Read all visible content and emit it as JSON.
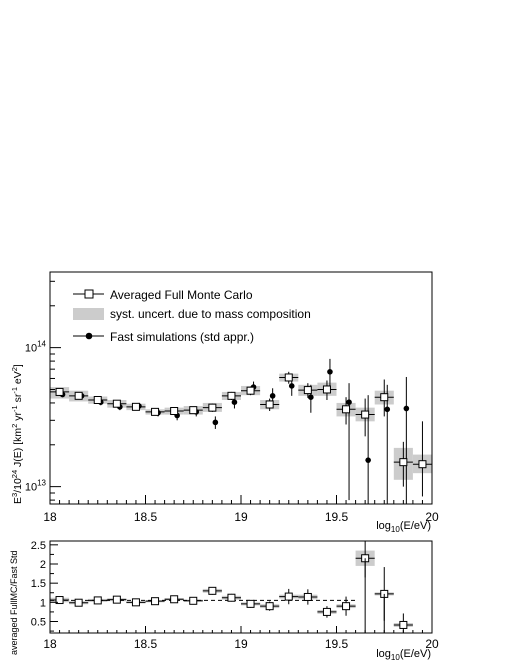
{
  "chart_data": [
    {
      "type": "scatter",
      "title": "",
      "xlabel": "log10(E/eV)",
      "ylabel": "E^3/10^24 J(E) [km^2 yr^-1 sr^-1 eV^2]",
      "xlim": [
        18,
        20
      ],
      "ylim": [
        7500000000000.0,
        350000000000000.0
      ],
      "yscale": "log",
      "grid": false,
      "legend_position": "top-left",
      "x_ticks": [
        18,
        18.5,
        19,
        19.5,
        20
      ],
      "x_tick_labels": [
        "18",
        "18.5",
        "19",
        "19.5",
        "20"
      ],
      "y_ticks": [
        10000000000000.0,
        100000000000000.0
      ],
      "legend": {
        "full_mc": "Averaged Full Monte Carlo",
        "syst": "syst. uncert. due to mass composition",
        "fast": "Fast simulations (std appr.)"
      },
      "colors": {
        "markers": "#000000",
        "syst_band": "#cccccc"
      },
      "x": [
        18.05,
        18.15,
        18.25,
        18.35,
        18.45,
        18.55,
        18.65,
        18.75,
        18.85,
        18.95,
        19.05,
        19.15,
        19.25,
        19.35,
        19.45,
        19.55,
        19.65,
        19.75,
        19.85,
        19.95
      ],
      "series": [
        {
          "name": "Averaged Full Monte Carlo",
          "marker": "open-square",
          "values": [
            48000000000000.0,
            45000000000000.0,
            42000000000000.0,
            39500000000000.0,
            37500000000000.0,
            34500000000000.0,
            35000000000000.0,
            35500000000000.0,
            37000000000000.0,
            45000000000000.0,
            49000000000000.0,
            39000000000000.0,
            61000000000000.0,
            49500000000000.0,
            50000000000000.0,
            36000000000000.0,
            33000000000000.0,
            44000000000000.0,
            15000000000000.0,
            14500000000000.0
          ],
          "err_low": [
            3000000000000.0,
            2500000000000.0,
            2000000000000.0,
            2000000000000.0,
            2000000000000.0,
            1500000000000.0,
            2000000000000.0,
            2000000000000.0,
            2500000000000.0,
            3000000000000.0,
            3500000000000.0,
            4000000000000.0,
            6000000000000.0,
            6000000000000.0,
            8000000000000.0,
            8000000000000.0,
            10000000000000.0,
            12000000000000.0,
            5000000000000.0,
            6000000000000.0
          ],
          "err_high": [
            3000000000000.0,
            2500000000000.0,
            2000000000000.0,
            2000000000000.0,
            2000000000000.0,
            1500000000000.0,
            2000000000000.0,
            2000000000000.0,
            2500000000000.0,
            3000000000000.0,
            3500000000000.0,
            4000000000000.0,
            6000000000000.0,
            6000000000000.0,
            8000000000000.0,
            8000000000000.0,
            10000000000000.0,
            15000000000000.0,
            6000000000000.0,
            15000000000000.0
          ]
        },
        {
          "name": "syst. uncert. due to mass composition",
          "marker": "band",
          "low": [
            43000000000000.0,
            41000000000000.0,
            39500000000000.0,
            37000000000000.0,
            35500000000000.0,
            33000000000000.0,
            33000000000000.0,
            33000000000000.0,
            34500000000000.0,
            42000000000000.0,
            45500000000000.0,
            36000000000000.0,
            57000000000000.0,
            45000000000000.0,
            45000000000000.0,
            32000000000000.0,
            29500000000000.0,
            39000000000000.0,
            11200000000000.0,
            12500000000000.0
          ],
          "high": [
            52000000000000.0,
            49000000000000.0,
            44500000000000.0,
            42000000000000.0,
            39500000000000.0,
            36000000000000.0,
            37000000000000.0,
            38000000000000.0,
            40000000000000.0,
            48000000000000.0,
            53000000000000.0,
            42000000000000.0,
            65000000000000.0,
            54000000000000.0,
            56000000000000.0,
            40000000000000.0,
            37000000000000.0,
            49000000000000.0,
            19000000000000.0,
            17000000000000.0
          ]
        },
        {
          "name": "Fast simulations (std appr.)",
          "marker": "filled-circle",
          "values": [
            46000000000000.0,
            45000000000000.0,
            40500000000000.0,
            37500000000000.0,
            38000000000000.0,
            34000000000000.0,
            32500000000000.0,
            34500000000000.0,
            29000000000000.0,
            40500000000000.0,
            52000000000000.0,
            45000000000000.0,
            53000000000000.0,
            44000000000000.0,
            67000000000000.0,
            40500000000000.0,
            15500000000000.0,
            36000000000000.0,
            36500000000000.0,
            null
          ],
          "err_low": [
            2000000000000.0,
            2000000000000.0,
            2000000000000.0,
            2000000000000.0,
            2000000000000.0,
            2000000000000.0,
            2500000000000.0,
            2500000000000.0,
            3000000000000.0,
            4000000000000.0,
            5000000000000.0,
            6000000000000.0,
            8000000000000.0,
            10000000000000.0,
            16000000000000.0,
            32500000000000.0,
            8000000000000.0,
            28500000000000.0,
            29000000000000.0,
            null
          ],
          "err_high": [
            2000000000000.0,
            2000000000000.0,
            2000000000000.0,
            2000000000000.0,
            2000000000000.0,
            2000000000000.0,
            2500000000000.0,
            2500000000000.0,
            3000000000000.0,
            4000000000000.0,
            5000000000000.0,
            6000000000000.0,
            8000000000000.0,
            10000000000000.0,
            16000000000000.0,
            15000000000000.0,
            30000000000000.0,
            18000000000000.0,
            25000000000000.0,
            null
          ]
        }
      ]
    },
    {
      "type": "scatter",
      "title": "",
      "xlabel": "log10(E/eV)",
      "ylabel": "averaged FullMC/Fast Std",
      "xlim": [
        18,
        20
      ],
      "ylim": [
        0.2,
        2.6
      ],
      "grid": false,
      "x_ticks": [
        18,
        18.5,
        19,
        19.5,
        20
      ],
      "x_tick_labels": [
        "18",
        "18.5",
        "19",
        "19.5",
        "20"
      ],
      "y_ticks": [
        0.5,
        1,
        1.5,
        2,
        2.5
      ],
      "y_tick_labels": [
        "0.5",
        "1",
        "1.5",
        "2",
        "2.5"
      ],
      "reference_line": 1.05,
      "x": [
        18.05,
        18.15,
        18.25,
        18.35,
        18.45,
        18.55,
        18.65,
        18.75,
        18.85,
        18.95,
        19.05,
        19.15,
        19.25,
        19.35,
        19.45,
        19.55,
        19.65,
        19.75,
        19.85
      ],
      "series": [
        {
          "name": "ratio",
          "marker": "open-square",
          "values": [
            1.06,
            0.99,
            1.05,
            1.07,
            1.0,
            1.03,
            1.08,
            1.04,
            1.3,
            1.12,
            0.96,
            0.9,
            1.15,
            1.14,
            0.75,
            0.9,
            2.15,
            1.22,
            0.41
          ],
          "err": [
            0.05,
            0.05,
            0.05,
            0.05,
            0.05,
            0.05,
            0.06,
            0.06,
            0.1,
            0.1,
            0.1,
            0.12,
            0.2,
            0.2,
            0.15,
            0.25,
            0.5,
            0.7,
            0.3
          ],
          "syst_low": [
            1.0,
            0.95,
            1.01,
            1.03,
            0.97,
            1.0,
            1.05,
            1.01,
            1.25,
            1.07,
            0.92,
            0.85,
            1.1,
            1.08,
            0.7,
            0.85,
            1.95,
            1.18,
            0.36
          ],
          "syst_high": [
            1.12,
            1.03,
            1.09,
            1.11,
            1.03,
            1.06,
            1.11,
            1.07,
            1.35,
            1.17,
            1.0,
            0.95,
            1.2,
            1.2,
            0.8,
            0.95,
            2.35,
            1.26,
            0.46
          ]
        }
      ]
    }
  ]
}
